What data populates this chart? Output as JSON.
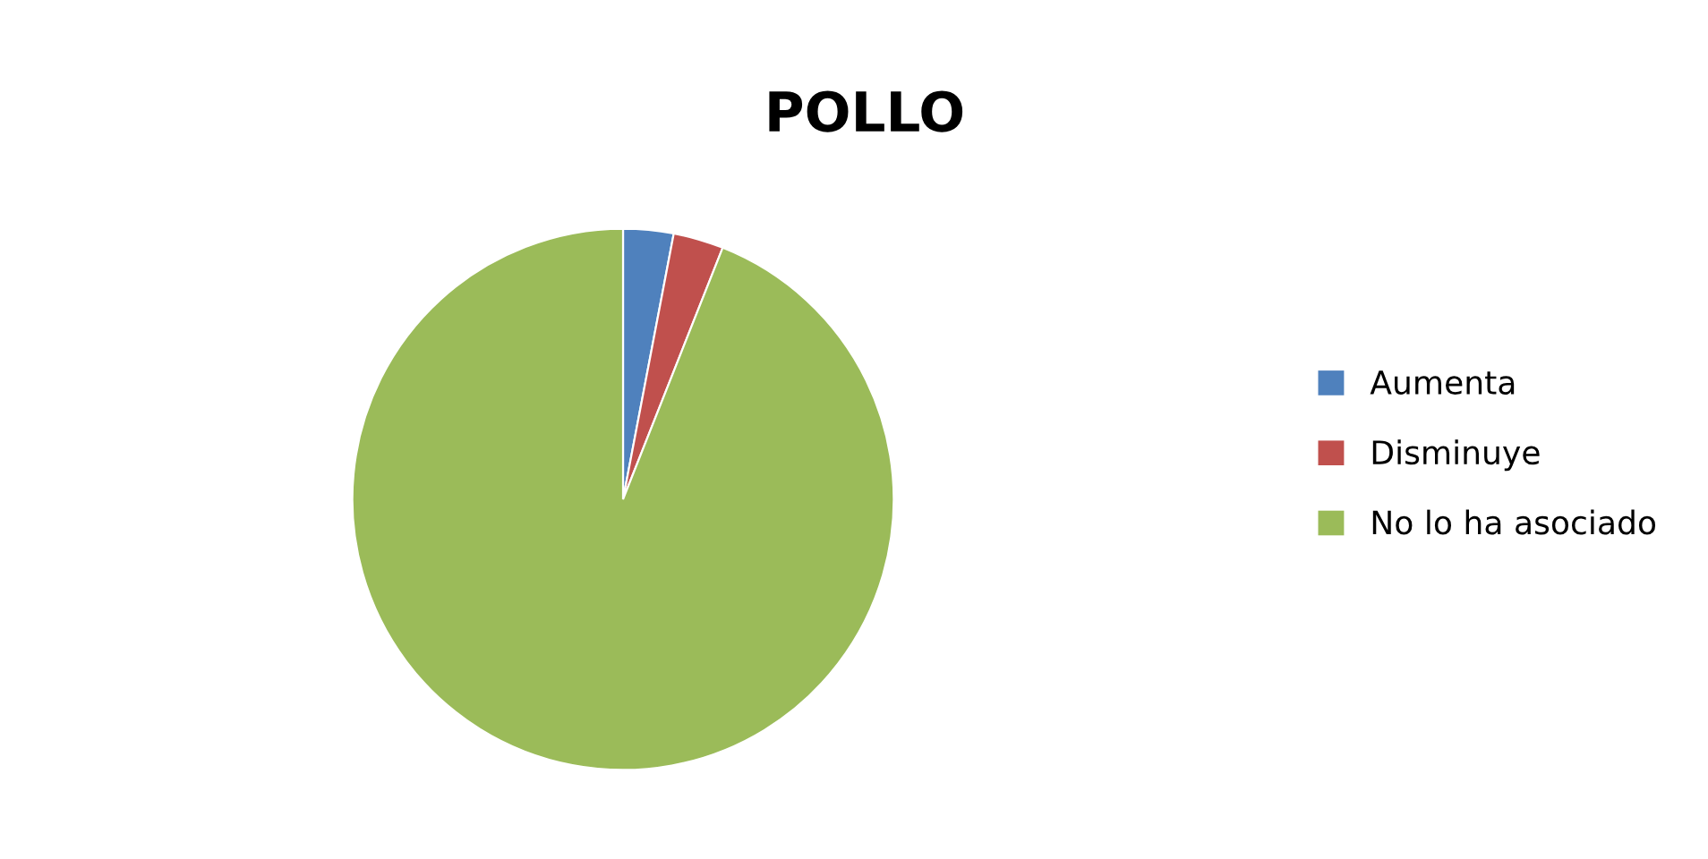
{
  "chart_data": {
    "type": "pie",
    "title": "POLLO",
    "categories": [
      "Aumenta",
      "Disminuye",
      "No lo ha asociado"
    ],
    "values": [
      3,
      3,
      94
    ],
    "colors": [
      "#4f81bd",
      "#c0504d",
      "#9bbb59"
    ],
    "legend": "right"
  }
}
